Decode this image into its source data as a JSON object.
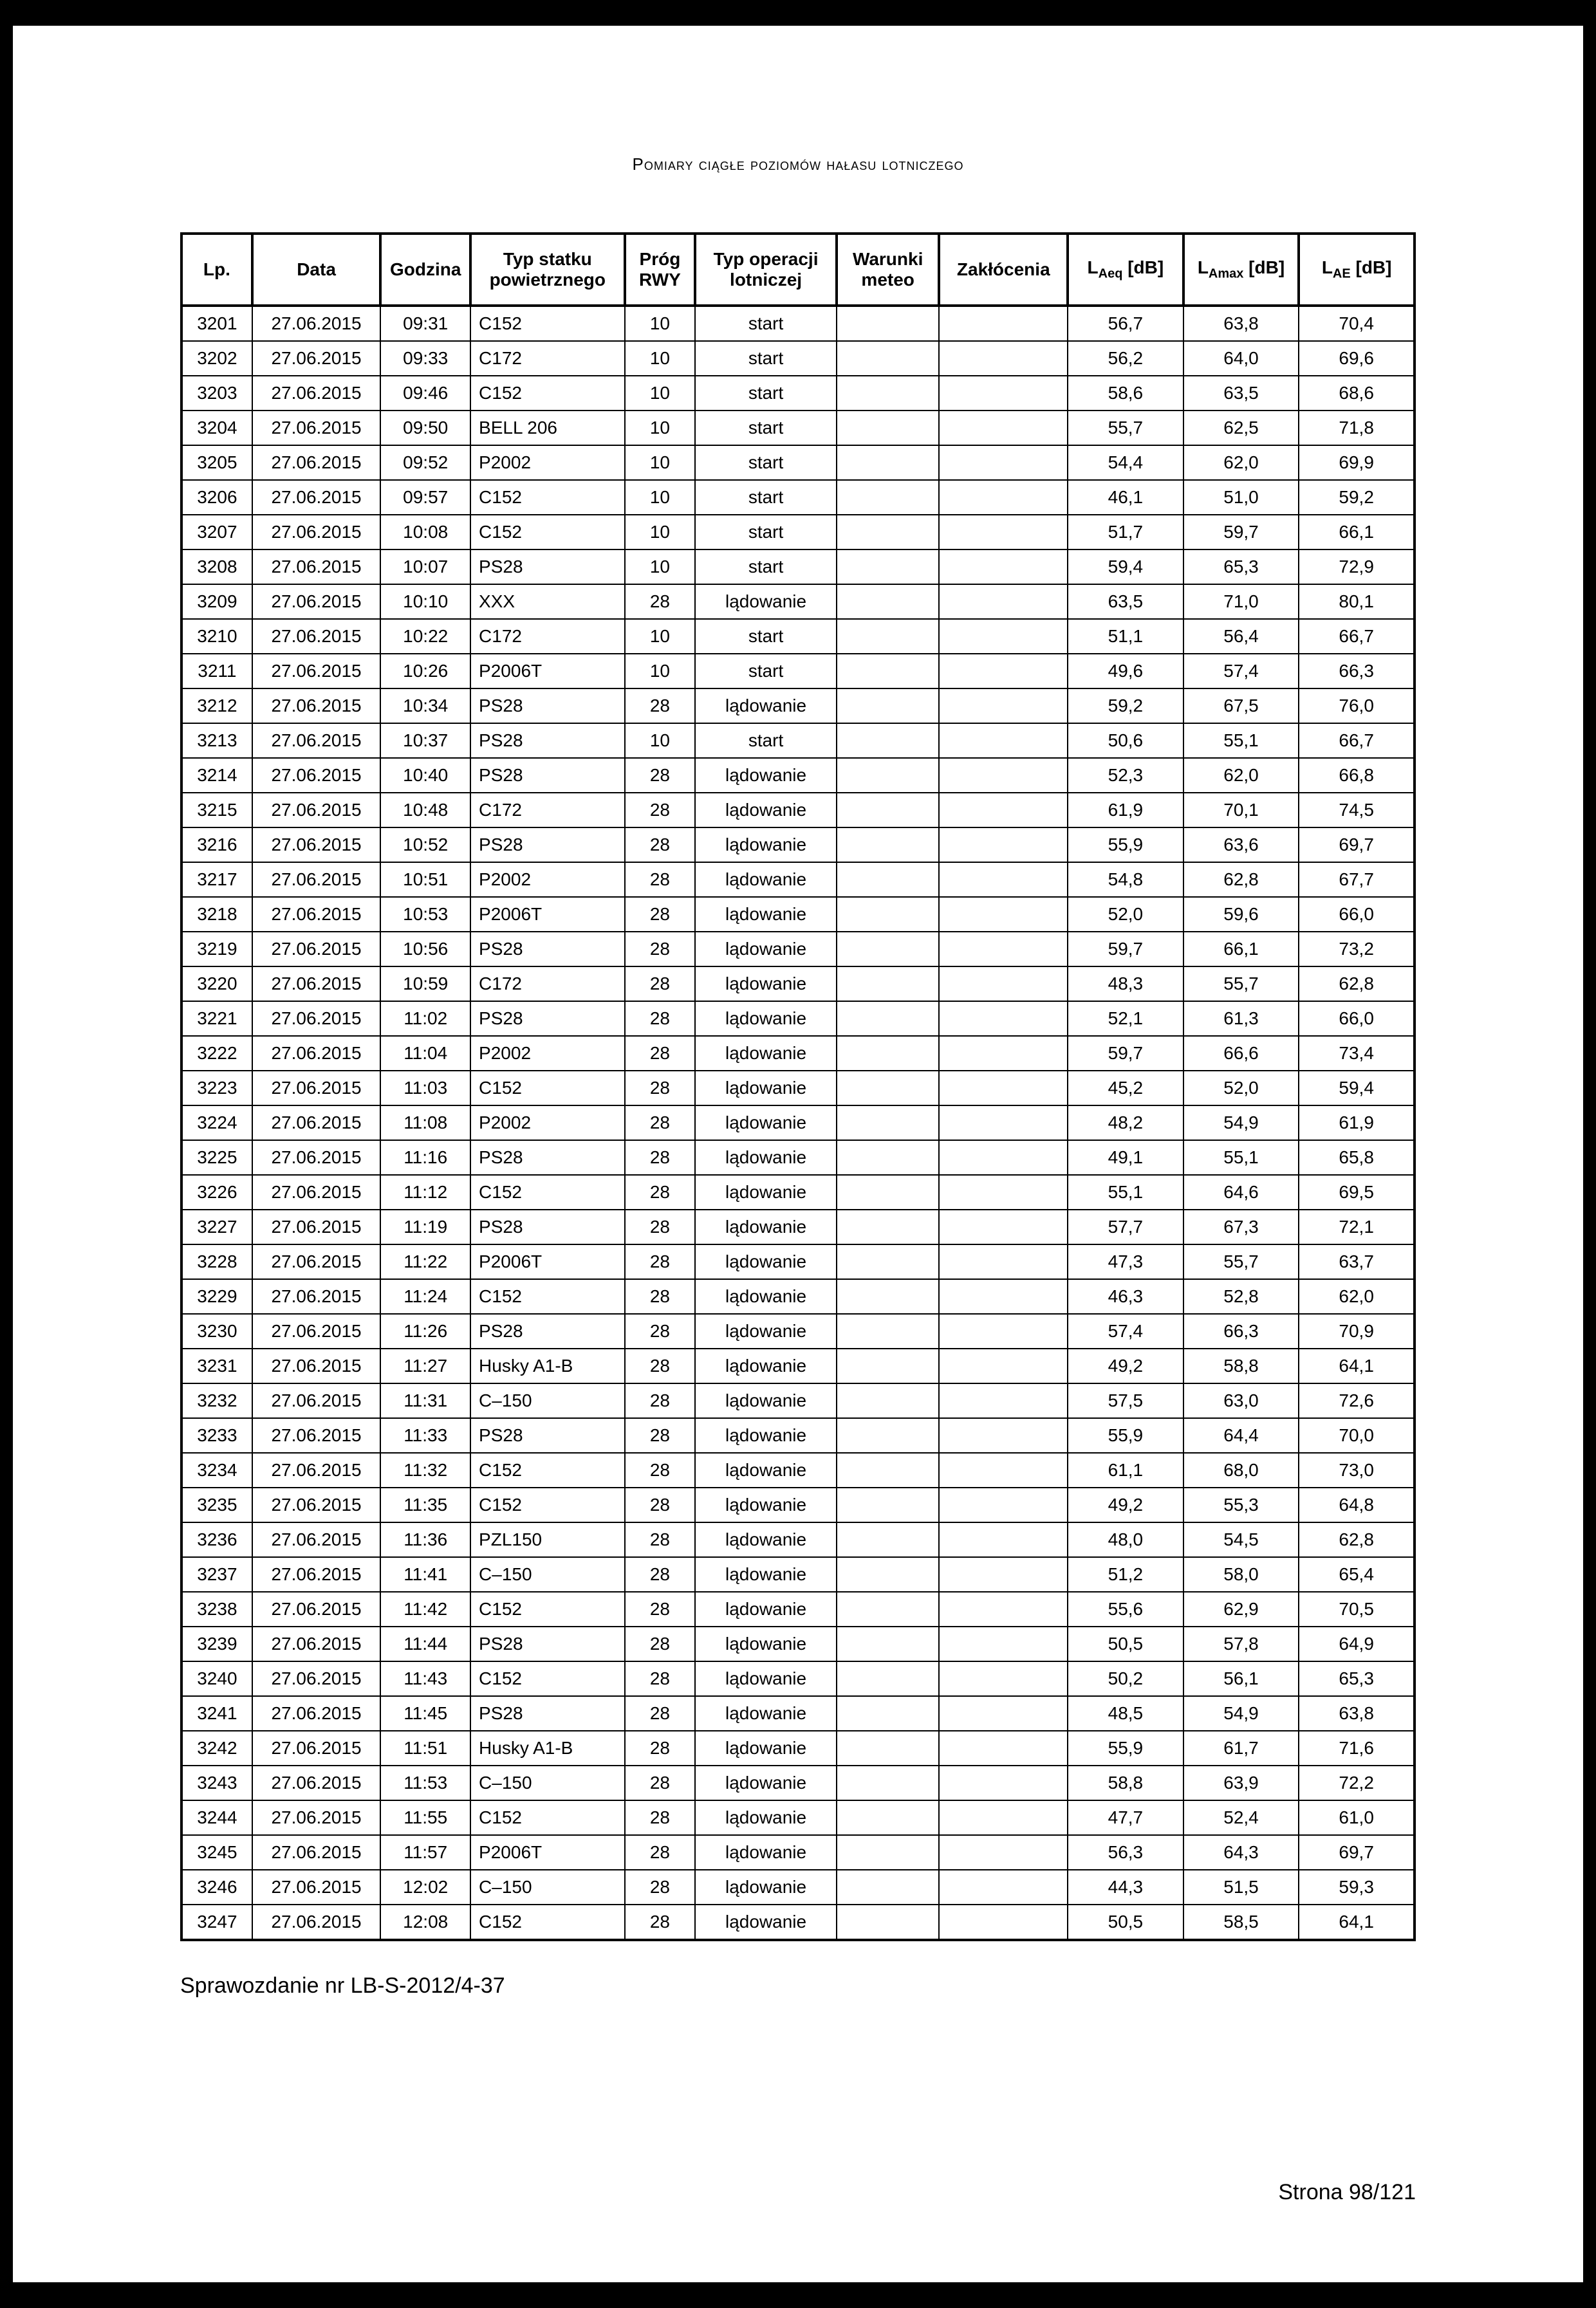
{
  "title": "Pomiary ciągłe poziomów hałasu lotniczego",
  "headers": {
    "lp": "Lp.",
    "data": "Data",
    "godzina": "Godzina",
    "typ_statku": "Typ statku powietrznego",
    "prog_rwy": "Próg RWY",
    "typ_operacji": "Typ operacji lotniczej",
    "warunki": "Warunki meteo",
    "zaklocenia": "Zakłócenia",
    "laeq": "LAeq [dB]",
    "lamax": "LAmax [dB]",
    "lae": "LAE [dB]"
  },
  "rows": [
    {
      "lp": "3201",
      "data": "27.06.2015",
      "godz": "09:31",
      "typ": "C152",
      "rwy": "10",
      "oper": "start",
      "war": "",
      "zakl": "",
      "laeq": "56,7",
      "lamax": "63,8",
      "lae": "70,4"
    },
    {
      "lp": "3202",
      "data": "27.06.2015",
      "godz": "09:33",
      "typ": "C172",
      "rwy": "10",
      "oper": "start",
      "war": "",
      "zakl": "",
      "laeq": "56,2",
      "lamax": "64,0",
      "lae": "69,6"
    },
    {
      "lp": "3203",
      "data": "27.06.2015",
      "godz": "09:46",
      "typ": "C152",
      "rwy": "10",
      "oper": "start",
      "war": "",
      "zakl": "",
      "laeq": "58,6",
      "lamax": "63,5",
      "lae": "68,6"
    },
    {
      "lp": "3204",
      "data": "27.06.2015",
      "godz": "09:50",
      "typ": "BELL 206",
      "rwy": "10",
      "oper": "start",
      "war": "",
      "zakl": "",
      "laeq": "55,7",
      "lamax": "62,5",
      "lae": "71,8"
    },
    {
      "lp": "3205",
      "data": "27.06.2015",
      "godz": "09:52",
      "typ": "P2002",
      "rwy": "10",
      "oper": "start",
      "war": "",
      "zakl": "",
      "laeq": "54,4",
      "lamax": "62,0",
      "lae": "69,9"
    },
    {
      "lp": "3206",
      "data": "27.06.2015",
      "godz": "09:57",
      "typ": "C152",
      "rwy": "10",
      "oper": "start",
      "war": "",
      "zakl": "",
      "laeq": "46,1",
      "lamax": "51,0",
      "lae": "59,2"
    },
    {
      "lp": "3207",
      "data": "27.06.2015",
      "godz": "10:08",
      "typ": "C152",
      "rwy": "10",
      "oper": "start",
      "war": "",
      "zakl": "",
      "laeq": "51,7",
      "lamax": "59,7",
      "lae": "66,1"
    },
    {
      "lp": "3208",
      "data": "27.06.2015",
      "godz": "10:07",
      "typ": "PS28",
      "rwy": "10",
      "oper": "start",
      "war": "",
      "zakl": "",
      "laeq": "59,4",
      "lamax": "65,3",
      "lae": "72,9"
    },
    {
      "lp": "3209",
      "data": "27.06.2015",
      "godz": "10:10",
      "typ": "XXX",
      "rwy": "28",
      "oper": "lądowanie",
      "war": "",
      "zakl": "",
      "laeq": "63,5",
      "lamax": "71,0",
      "lae": "80,1"
    },
    {
      "lp": "3210",
      "data": "27.06.2015",
      "godz": "10:22",
      "typ": "C172",
      "rwy": "10",
      "oper": "start",
      "war": "",
      "zakl": "",
      "laeq": "51,1",
      "lamax": "56,4",
      "lae": "66,7"
    },
    {
      "lp": "3211",
      "data": "27.06.2015",
      "godz": "10:26",
      "typ": "P2006T",
      "rwy": "10",
      "oper": "start",
      "war": "",
      "zakl": "",
      "laeq": "49,6",
      "lamax": "57,4",
      "lae": "66,3"
    },
    {
      "lp": "3212",
      "data": "27.06.2015",
      "godz": "10:34",
      "typ": "PS28",
      "rwy": "28",
      "oper": "lądowanie",
      "war": "",
      "zakl": "",
      "laeq": "59,2",
      "lamax": "67,5",
      "lae": "76,0"
    },
    {
      "lp": "3213",
      "data": "27.06.2015",
      "godz": "10:37",
      "typ": "PS28",
      "rwy": "10",
      "oper": "start",
      "war": "",
      "zakl": "",
      "laeq": "50,6",
      "lamax": "55,1",
      "lae": "66,7"
    },
    {
      "lp": "3214",
      "data": "27.06.2015",
      "godz": "10:40",
      "typ": "PS28",
      "rwy": "28",
      "oper": "lądowanie",
      "war": "",
      "zakl": "",
      "laeq": "52,3",
      "lamax": "62,0",
      "lae": "66,8"
    },
    {
      "lp": "3215",
      "data": "27.06.2015",
      "godz": "10:48",
      "typ": "C172",
      "rwy": "28",
      "oper": "lądowanie",
      "war": "",
      "zakl": "",
      "laeq": "61,9",
      "lamax": "70,1",
      "lae": "74,5"
    },
    {
      "lp": "3216",
      "data": "27.06.2015",
      "godz": "10:52",
      "typ": "PS28",
      "rwy": "28",
      "oper": "lądowanie",
      "war": "",
      "zakl": "",
      "laeq": "55,9",
      "lamax": "63,6",
      "lae": "69,7"
    },
    {
      "lp": "3217",
      "data": "27.06.2015",
      "godz": "10:51",
      "typ": "P2002",
      "rwy": "28",
      "oper": "lądowanie",
      "war": "",
      "zakl": "",
      "laeq": "54,8",
      "lamax": "62,8",
      "lae": "67,7"
    },
    {
      "lp": "3218",
      "data": "27.06.2015",
      "godz": "10:53",
      "typ": "P2006T",
      "rwy": "28",
      "oper": "lądowanie",
      "war": "",
      "zakl": "",
      "laeq": "52,0",
      "lamax": "59,6",
      "lae": "66,0"
    },
    {
      "lp": "3219",
      "data": "27.06.2015",
      "godz": "10:56",
      "typ": "PS28",
      "rwy": "28",
      "oper": "lądowanie",
      "war": "",
      "zakl": "",
      "laeq": "59,7",
      "lamax": "66,1",
      "lae": "73,2"
    },
    {
      "lp": "3220",
      "data": "27.06.2015",
      "godz": "10:59",
      "typ": "C172",
      "rwy": "28",
      "oper": "lądowanie",
      "war": "",
      "zakl": "",
      "laeq": "48,3",
      "lamax": "55,7",
      "lae": "62,8"
    },
    {
      "lp": "3221",
      "data": "27.06.2015",
      "godz": "11:02",
      "typ": "PS28",
      "rwy": "28",
      "oper": "lądowanie",
      "war": "",
      "zakl": "",
      "laeq": "52,1",
      "lamax": "61,3",
      "lae": "66,0"
    },
    {
      "lp": "3222",
      "data": "27.06.2015",
      "godz": "11:04",
      "typ": "P2002",
      "rwy": "28",
      "oper": "lądowanie",
      "war": "",
      "zakl": "",
      "laeq": "59,7",
      "lamax": "66,6",
      "lae": "73,4"
    },
    {
      "lp": "3223",
      "data": "27.06.2015",
      "godz": "11:03",
      "typ": "C152",
      "rwy": "28",
      "oper": "lądowanie",
      "war": "",
      "zakl": "",
      "laeq": "45,2",
      "lamax": "52,0",
      "lae": "59,4"
    },
    {
      "lp": "3224",
      "data": "27.06.2015",
      "godz": "11:08",
      "typ": "P2002",
      "rwy": "28",
      "oper": "lądowanie",
      "war": "",
      "zakl": "",
      "laeq": "48,2",
      "lamax": "54,9",
      "lae": "61,9"
    },
    {
      "lp": "3225",
      "data": "27.06.2015",
      "godz": "11:16",
      "typ": "PS28",
      "rwy": "28",
      "oper": "lądowanie",
      "war": "",
      "zakl": "",
      "laeq": "49,1",
      "lamax": "55,1",
      "lae": "65,8"
    },
    {
      "lp": "3226",
      "data": "27.06.2015",
      "godz": "11:12",
      "typ": "C152",
      "rwy": "28",
      "oper": "lądowanie",
      "war": "",
      "zakl": "",
      "laeq": "55,1",
      "lamax": "64,6",
      "lae": "69,5"
    },
    {
      "lp": "3227",
      "data": "27.06.2015",
      "godz": "11:19",
      "typ": "PS28",
      "rwy": "28",
      "oper": "lądowanie",
      "war": "",
      "zakl": "",
      "laeq": "57,7",
      "lamax": "67,3",
      "lae": "72,1"
    },
    {
      "lp": "3228",
      "data": "27.06.2015",
      "godz": "11:22",
      "typ": "P2006T",
      "rwy": "28",
      "oper": "lądowanie",
      "war": "",
      "zakl": "",
      "laeq": "47,3",
      "lamax": "55,7",
      "lae": "63,7"
    },
    {
      "lp": "3229",
      "data": "27.06.2015",
      "godz": "11:24",
      "typ": "C152",
      "rwy": "28",
      "oper": "lądowanie",
      "war": "",
      "zakl": "",
      "laeq": "46,3",
      "lamax": "52,8",
      "lae": "62,0"
    },
    {
      "lp": "3230",
      "data": "27.06.2015",
      "godz": "11:26",
      "typ": "PS28",
      "rwy": "28",
      "oper": "lądowanie",
      "war": "",
      "zakl": "",
      "laeq": "57,4",
      "lamax": "66,3",
      "lae": "70,9"
    },
    {
      "lp": "3231",
      "data": "27.06.2015",
      "godz": "11:27",
      "typ": "Husky A1-B",
      "rwy": "28",
      "oper": "lądowanie",
      "war": "",
      "zakl": "",
      "laeq": "49,2",
      "lamax": "58,8",
      "lae": "64,1"
    },
    {
      "lp": "3232",
      "data": "27.06.2015",
      "godz": "11:31",
      "typ": "C–150",
      "rwy": "28",
      "oper": "lądowanie",
      "war": "",
      "zakl": "",
      "laeq": "57,5",
      "lamax": "63,0",
      "lae": "72,6"
    },
    {
      "lp": "3233",
      "data": "27.06.2015",
      "godz": "11:33",
      "typ": "PS28",
      "rwy": "28",
      "oper": "lądowanie",
      "war": "",
      "zakl": "",
      "laeq": "55,9",
      "lamax": "64,4",
      "lae": "70,0"
    },
    {
      "lp": "3234",
      "data": "27.06.2015",
      "godz": "11:32",
      "typ": "C152",
      "rwy": "28",
      "oper": "lądowanie",
      "war": "",
      "zakl": "",
      "laeq": "61,1",
      "lamax": "68,0",
      "lae": "73,0"
    },
    {
      "lp": "3235",
      "data": "27.06.2015",
      "godz": "11:35",
      "typ": "C152",
      "rwy": "28",
      "oper": "lądowanie",
      "war": "",
      "zakl": "",
      "laeq": "49,2",
      "lamax": "55,3",
      "lae": "64,8"
    },
    {
      "lp": "3236",
      "data": "27.06.2015",
      "godz": "11:36",
      "typ": "PZL150",
      "rwy": "28",
      "oper": "lądowanie",
      "war": "",
      "zakl": "",
      "laeq": "48,0",
      "lamax": "54,5",
      "lae": "62,8"
    },
    {
      "lp": "3237",
      "data": "27.06.2015",
      "godz": "11:41",
      "typ": "C–150",
      "rwy": "28",
      "oper": "lądowanie",
      "war": "",
      "zakl": "",
      "laeq": "51,2",
      "lamax": "58,0",
      "lae": "65,4"
    },
    {
      "lp": "3238",
      "data": "27.06.2015",
      "godz": "11:42",
      "typ": "C152",
      "rwy": "28",
      "oper": "lądowanie",
      "war": "",
      "zakl": "",
      "laeq": "55,6",
      "lamax": "62,9",
      "lae": "70,5"
    },
    {
      "lp": "3239",
      "data": "27.06.2015",
      "godz": "11:44",
      "typ": "PS28",
      "rwy": "28",
      "oper": "lądowanie",
      "war": "",
      "zakl": "",
      "laeq": "50,5",
      "lamax": "57,8",
      "lae": "64,9"
    },
    {
      "lp": "3240",
      "data": "27.06.2015",
      "godz": "11:43",
      "typ": "C152",
      "rwy": "28",
      "oper": "lądowanie",
      "war": "",
      "zakl": "",
      "laeq": "50,2",
      "lamax": "56,1",
      "lae": "65,3"
    },
    {
      "lp": "3241",
      "data": "27.06.2015",
      "godz": "11:45",
      "typ": "PS28",
      "rwy": "28",
      "oper": "lądowanie",
      "war": "",
      "zakl": "",
      "laeq": "48,5",
      "lamax": "54,9",
      "lae": "63,8"
    },
    {
      "lp": "3242",
      "data": "27.06.2015",
      "godz": "11:51",
      "typ": "Husky A1-B",
      "rwy": "28",
      "oper": "lądowanie",
      "war": "",
      "zakl": "",
      "laeq": "55,9",
      "lamax": "61,7",
      "lae": "71,6"
    },
    {
      "lp": "3243",
      "data": "27.06.2015",
      "godz": "11:53",
      "typ": "C–150",
      "rwy": "28",
      "oper": "lądowanie",
      "war": "",
      "zakl": "",
      "laeq": "58,8",
      "lamax": "63,9",
      "lae": "72,2"
    },
    {
      "lp": "3244",
      "data": "27.06.2015",
      "godz": "11:55",
      "typ": "C152",
      "rwy": "28",
      "oper": "lądowanie",
      "war": "",
      "zakl": "",
      "laeq": "47,7",
      "lamax": "52,4",
      "lae": "61,0"
    },
    {
      "lp": "3245",
      "data": "27.06.2015",
      "godz": "11:57",
      "typ": "P2006T",
      "rwy": "28",
      "oper": "lądowanie",
      "war": "",
      "zakl": "",
      "laeq": "56,3",
      "lamax": "64,3",
      "lae": "69,7"
    },
    {
      "lp": "3246",
      "data": "27.06.2015",
      "godz": "12:02",
      "typ": "C–150",
      "rwy": "28",
      "oper": "lądowanie",
      "war": "",
      "zakl": "",
      "laeq": "44,3",
      "lamax": "51,5",
      "lae": "59,3"
    },
    {
      "lp": "3247",
      "data": "27.06.2015",
      "godz": "12:08",
      "typ": "C152",
      "rwy": "28",
      "oper": "lądowanie",
      "war": "",
      "zakl": "",
      "laeq": "50,5",
      "lamax": "58,5",
      "lae": "64,1"
    }
  ],
  "footer_left": "Sprawozdanie nr LB-S-2012/4-37",
  "footer_right": "Strona 98/121"
}
